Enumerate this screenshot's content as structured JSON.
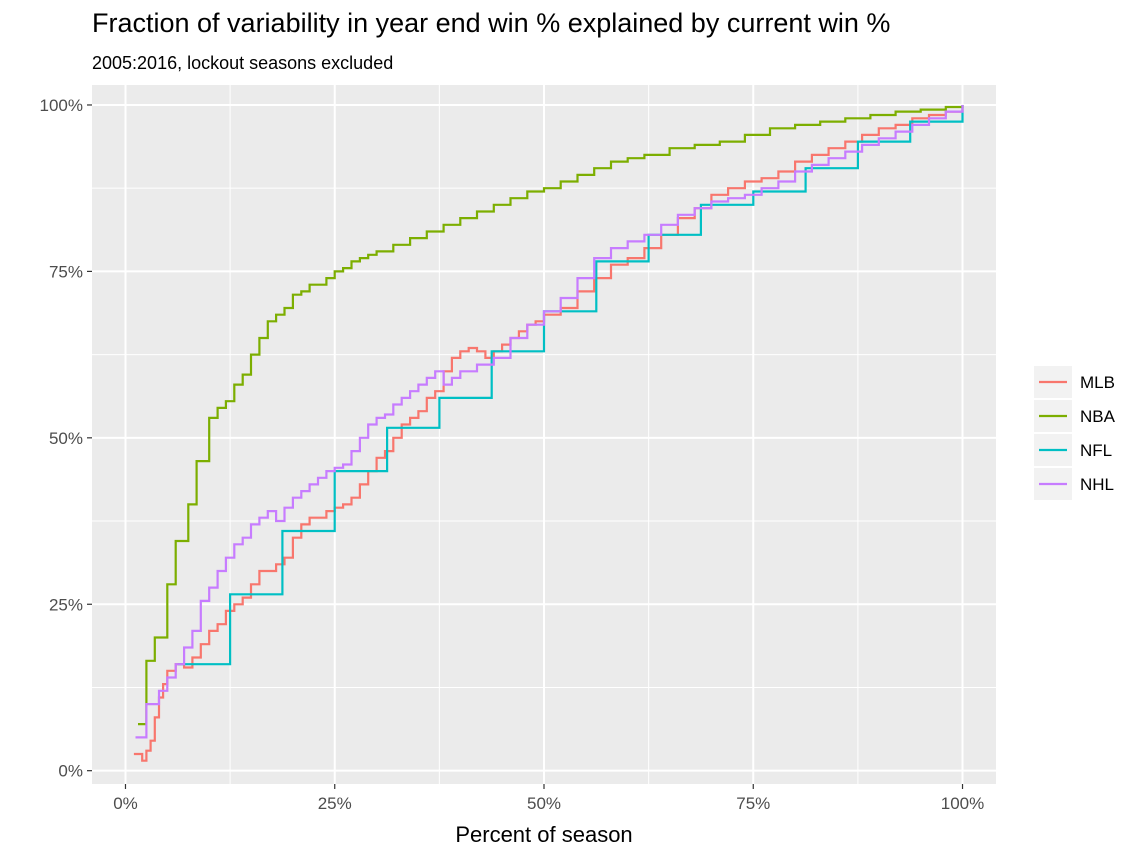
{
  "chart_data": {
    "type": "line",
    "step": true,
    "title": "Fraction of variability in year end win % explained by current win %",
    "subtitle": "2005:2016, lockout seasons excluded",
    "xlabel": "Percent of season",
    "ylabel": "",
    "xlim": [
      -0.04,
      1.04
    ],
    "ylim": [
      -0.02,
      1.03
    ],
    "x_ticks": [
      0,
      0.25,
      0.5,
      0.75,
      1.0
    ],
    "x_tick_labels": [
      "0%",
      "25%",
      "50%",
      "75%",
      "100%"
    ],
    "y_ticks": [
      0,
      0.25,
      0.5,
      0.75,
      1.0
    ],
    "y_tick_labels": [
      "0%",
      "25%",
      "50%",
      "75%",
      "100%"
    ],
    "grid": true,
    "legend_position": "right",
    "series": [
      {
        "name": "MLB",
        "color": "#F8766D",
        "x": [
          0.01,
          0.02,
          0.025,
          0.03,
          0.035,
          0.04,
          0.045,
          0.05,
          0.06,
          0.07,
          0.08,
          0.09,
          0.1,
          0.11,
          0.12,
          0.13,
          0.14,
          0.15,
          0.16,
          0.17,
          0.18,
          0.19,
          0.2,
          0.21,
          0.22,
          0.23,
          0.24,
          0.25,
          0.26,
          0.27,
          0.28,
          0.29,
          0.3,
          0.31,
          0.32,
          0.33,
          0.34,
          0.35,
          0.36,
          0.37,
          0.38,
          0.39,
          0.4,
          0.41,
          0.42,
          0.43,
          0.44,
          0.45,
          0.46,
          0.47,
          0.48,
          0.49,
          0.5,
          0.52,
          0.54,
          0.56,
          0.58,
          0.6,
          0.62,
          0.64,
          0.66,
          0.68,
          0.7,
          0.72,
          0.74,
          0.76,
          0.78,
          0.8,
          0.82,
          0.84,
          0.86,
          0.88,
          0.9,
          0.92,
          0.94,
          0.96,
          0.98,
          1.0
        ],
        "y": [
          0.025,
          0.015,
          0.03,
          0.045,
          0.08,
          0.11,
          0.13,
          0.15,
          0.16,
          0.155,
          0.17,
          0.19,
          0.21,
          0.22,
          0.24,
          0.25,
          0.26,
          0.28,
          0.3,
          0.3,
          0.31,
          0.32,
          0.35,
          0.37,
          0.38,
          0.38,
          0.39,
          0.395,
          0.4,
          0.41,
          0.43,
          0.45,
          0.47,
          0.48,
          0.5,
          0.52,
          0.53,
          0.54,
          0.56,
          0.57,
          0.6,
          0.62,
          0.63,
          0.635,
          0.63,
          0.62,
          0.63,
          0.64,
          0.65,
          0.66,
          0.67,
          0.675,
          0.685,
          0.695,
          0.72,
          0.74,
          0.76,
          0.77,
          0.785,
          0.805,
          0.83,
          0.845,
          0.865,
          0.875,
          0.885,
          0.89,
          0.9,
          0.915,
          0.925,
          0.935,
          0.945,
          0.955,
          0.965,
          0.97,
          0.98,
          0.985,
          0.99,
          1.0
        ]
      },
      {
        "name": "NBA",
        "color": "#7CAE00",
        "x": [
          0.015,
          0.025,
          0.035,
          0.05,
          0.06,
          0.075,
          0.085,
          0.1,
          0.11,
          0.12,
          0.13,
          0.14,
          0.15,
          0.16,
          0.17,
          0.18,
          0.19,
          0.2,
          0.21,
          0.22,
          0.24,
          0.25,
          0.26,
          0.27,
          0.28,
          0.29,
          0.3,
          0.32,
          0.34,
          0.36,
          0.38,
          0.4,
          0.42,
          0.44,
          0.46,
          0.48,
          0.5,
          0.52,
          0.54,
          0.56,
          0.58,
          0.6,
          0.62,
          0.65,
          0.68,
          0.71,
          0.74,
          0.77,
          0.8,
          0.83,
          0.86,
          0.89,
          0.92,
          0.95,
          0.98,
          1.0
        ],
        "y": [
          0.07,
          0.165,
          0.2,
          0.28,
          0.345,
          0.4,
          0.465,
          0.53,
          0.545,
          0.555,
          0.58,
          0.595,
          0.625,
          0.65,
          0.675,
          0.685,
          0.695,
          0.715,
          0.72,
          0.73,
          0.74,
          0.75,
          0.755,
          0.765,
          0.77,
          0.775,
          0.78,
          0.79,
          0.8,
          0.81,
          0.82,
          0.83,
          0.84,
          0.85,
          0.86,
          0.87,
          0.875,
          0.885,
          0.895,
          0.905,
          0.915,
          0.92,
          0.925,
          0.935,
          0.94,
          0.945,
          0.955,
          0.965,
          0.97,
          0.975,
          0.98,
          0.985,
          0.99,
          0.993,
          0.997,
          1.0
        ]
      },
      {
        "name": "NFL",
        "color": "#00BFC4",
        "x": [
          0.0625,
          0.125,
          0.1875,
          0.25,
          0.3125,
          0.375,
          0.4375,
          0.5,
          0.5625,
          0.625,
          0.6875,
          0.75,
          0.8125,
          0.875,
          0.9375,
          1.0
        ],
        "y": [
          0.16,
          0.265,
          0.36,
          0.45,
          0.515,
          0.56,
          0.63,
          0.69,
          0.765,
          0.805,
          0.85,
          0.87,
          0.905,
          0.945,
          0.975,
          1.0
        ]
      },
      {
        "name": "NHL",
        "color": "#C77CFF",
        "x": [
          0.012,
          0.025,
          0.04,
          0.05,
          0.06,
          0.07,
          0.08,
          0.09,
          0.1,
          0.11,
          0.12,
          0.13,
          0.14,
          0.15,
          0.16,
          0.17,
          0.18,
          0.19,
          0.2,
          0.21,
          0.22,
          0.23,
          0.24,
          0.25,
          0.26,
          0.27,
          0.28,
          0.29,
          0.3,
          0.31,
          0.32,
          0.33,
          0.34,
          0.35,
          0.36,
          0.37,
          0.38,
          0.39,
          0.4,
          0.42,
          0.44,
          0.46,
          0.48,
          0.5,
          0.52,
          0.54,
          0.56,
          0.58,
          0.6,
          0.62,
          0.64,
          0.66,
          0.68,
          0.7,
          0.72,
          0.74,
          0.76,
          0.78,
          0.8,
          0.82,
          0.84,
          0.86,
          0.88,
          0.9,
          0.92,
          0.94,
          0.96,
          0.98,
          1.0
        ],
        "y": [
          0.05,
          0.1,
          0.12,
          0.14,
          0.16,
          0.185,
          0.21,
          0.255,
          0.275,
          0.3,
          0.32,
          0.34,
          0.35,
          0.37,
          0.38,
          0.39,
          0.375,
          0.395,
          0.41,
          0.42,
          0.43,
          0.44,
          0.45,
          0.455,
          0.46,
          0.48,
          0.5,
          0.52,
          0.53,
          0.535,
          0.55,
          0.56,
          0.57,
          0.58,
          0.59,
          0.6,
          0.58,
          0.59,
          0.6,
          0.61,
          0.62,
          0.65,
          0.67,
          0.69,
          0.71,
          0.74,
          0.77,
          0.785,
          0.795,
          0.805,
          0.82,
          0.835,
          0.845,
          0.855,
          0.86,
          0.865,
          0.875,
          0.885,
          0.9,
          0.91,
          0.92,
          0.93,
          0.94,
          0.95,
          0.96,
          0.97,
          0.98,
          0.99,
          1.0
        ]
      }
    ]
  }
}
